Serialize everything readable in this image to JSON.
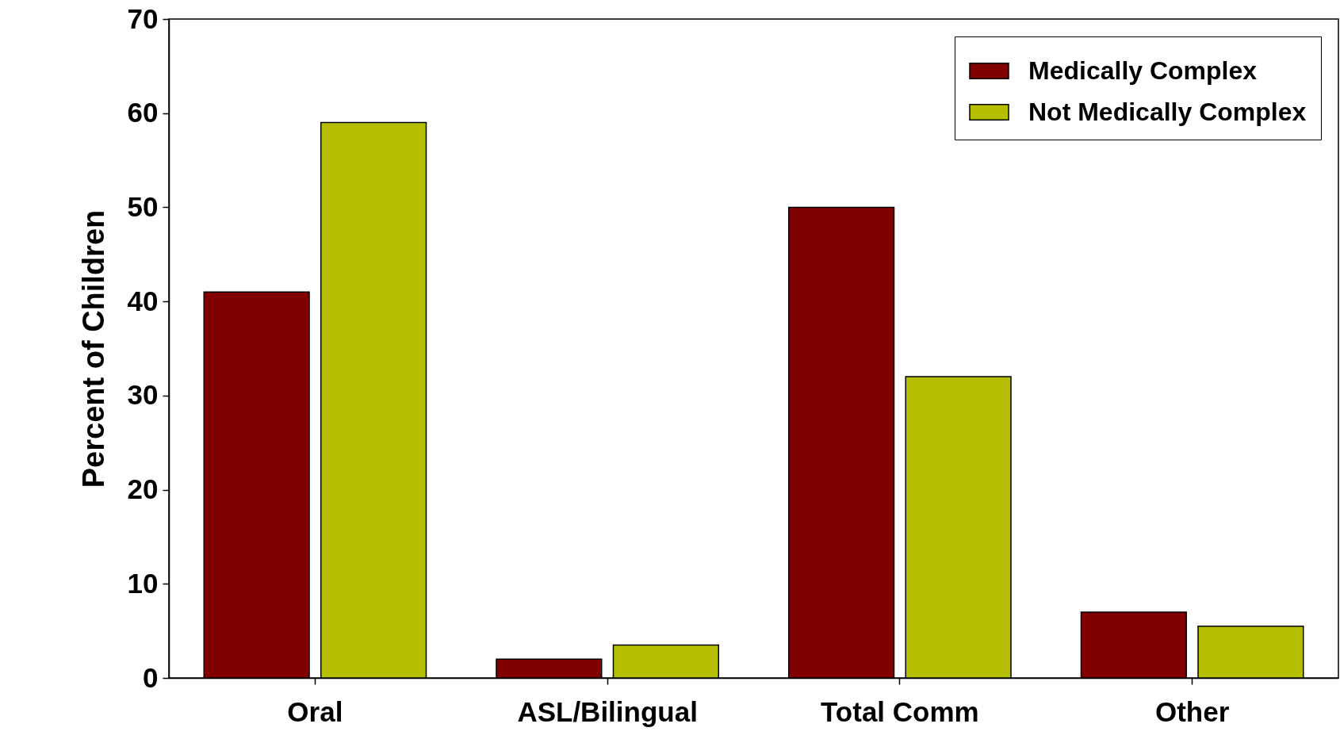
{
  "chart_data": {
    "type": "bar",
    "ylabel": "Percent of Children",
    "categories": [
      "Oral",
      "ASL/Bilingual",
      "Total Comm",
      "Other"
    ],
    "series": [
      {
        "name": "Medically Complex",
        "color": "#800000",
        "values": [
          41,
          2,
          50,
          7
        ]
      },
      {
        "name": "Not Medically Complex",
        "color": "#b5bf00",
        "values": [
          59,
          3.5,
          32,
          5.5
        ]
      }
    ],
    "ylim": [
      0,
      70
    ],
    "yticks": [
      0,
      10,
      20,
      30,
      40,
      50,
      60,
      70
    ],
    "grid": false,
    "legend": "top right"
  }
}
